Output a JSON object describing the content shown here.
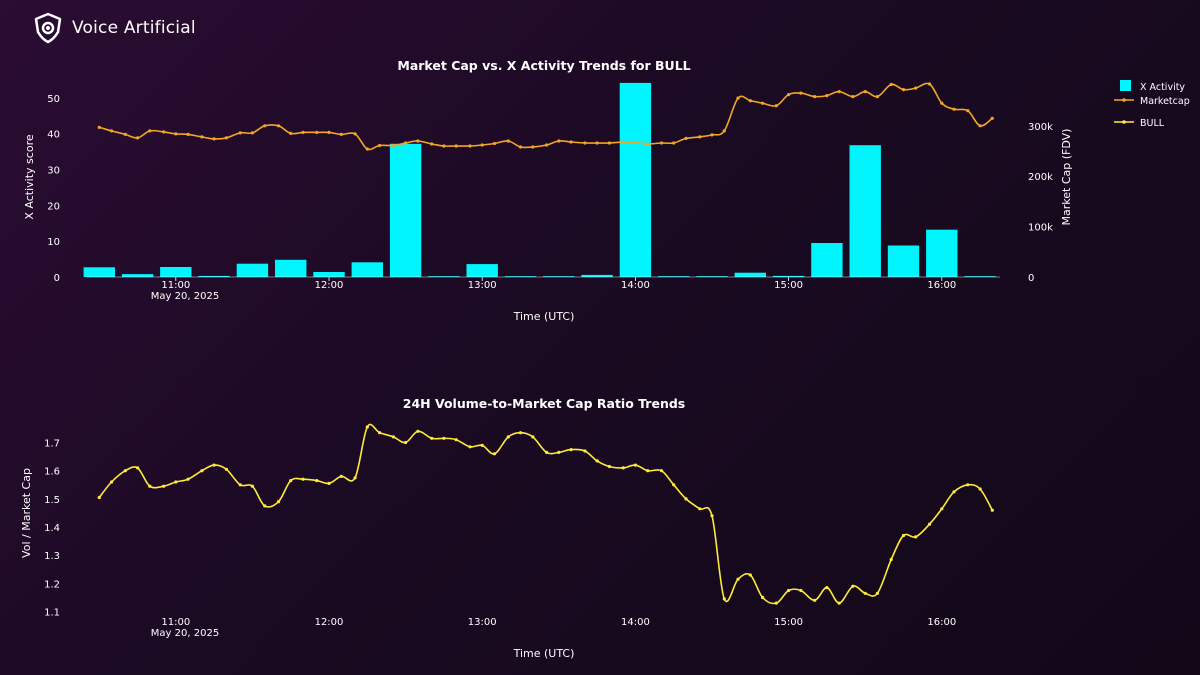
{
  "brand": {
    "name": "Voice Artificial",
    "logo_icon": "shield-eye-icon"
  },
  "colors": {
    "bar": "#00f5ff",
    "marketcap": "#f5a623",
    "bull": "#ffeb3b",
    "axis": "#ffffff"
  },
  "chart_data": [
    {
      "type": "bar+line",
      "title": "Market Cap vs. X Activity Trends for BULL",
      "xlabel": "Time (UTC)",
      "ylabel": "X Activity score",
      "y2label": "Market Cap (FDV)",
      "xlim_hours": [
        10.42,
        16.38
      ],
      "ylim": [
        0,
        55
      ],
      "y2lim": [
        0,
        391000
      ],
      "yticks": [
        0,
        10,
        20,
        30,
        40,
        50
      ],
      "y2ticks": [
        {
          "v": 0,
          "label": "0"
        },
        {
          "v": 100000,
          "label": "100k"
        },
        {
          "v": 200000,
          "label": "200k"
        },
        {
          "v": 300000,
          "label": "300k"
        }
      ],
      "xticks": [
        {
          "h": 11,
          "label": "11:00"
        },
        {
          "h": 12,
          "label": "12:00"
        },
        {
          "h": 13,
          "label": "13:00"
        },
        {
          "h": 14,
          "label": "14:00"
        },
        {
          "h": 15,
          "label": "15:00"
        },
        {
          "h": 16,
          "label": "16:00"
        }
      ],
      "date_label": "May 20, 2025",
      "legend": [
        "X Activity",
        "Marketcap",
        "BULL"
      ],
      "bars": {
        "name": "X Activity",
        "x": [
          10.5,
          10.75,
          11.0,
          11.25,
          11.5,
          11.75,
          12.0,
          12.25,
          12.5,
          12.75,
          13.0,
          13.25,
          13.5,
          13.75,
          14.0,
          14.25,
          14.5,
          14.75,
          15.0,
          15.25,
          15.5,
          15.75,
          16.0,
          16.25
        ],
        "values": [
          2.7,
          0.8,
          2.8,
          0.3,
          3.7,
          4.8,
          1.4,
          4.1,
          37.2,
          0,
          3.6,
          0.2,
          0.1,
          0.6,
          54.2,
          0.1,
          0,
          1.2,
          0.3,
          9.5,
          36.8,
          8.8,
          13.2,
          0
        ]
      },
      "series": [
        {
          "name": "Marketcap",
          "x": [
            10.5,
            10.58,
            10.67,
            10.75,
            10.83,
            10.92,
            11.0,
            11.08,
            11.17,
            11.25,
            11.33,
            11.42,
            11.5,
            11.58,
            11.67,
            11.75,
            11.83,
            11.92,
            12.0,
            12.08,
            12.17,
            12.25,
            12.33,
            12.42,
            12.5,
            12.58,
            12.67,
            12.75,
            12.83,
            12.92,
            13.0,
            13.08,
            13.17,
            13.25,
            13.33,
            13.42,
            13.5,
            13.58,
            13.67,
            13.75,
            13.83,
            13.92,
            14.0,
            14.08,
            14.17,
            14.25,
            14.33,
            14.42,
            14.5,
            14.58,
            14.67,
            14.75,
            14.83,
            14.92,
            15.0,
            15.08,
            15.17,
            15.25,
            15.33,
            15.42,
            15.5,
            15.58,
            15.67,
            15.75,
            15.83,
            15.92,
            16.0,
            16.08,
            16.17,
            16.25,
            16.33
          ],
          "values": [
            297000,
            290000,
            283000,
            276000,
            290000,
            288000,
            284000,
            283000,
            278000,
            274000,
            276000,
            286000,
            286000,
            300000,
            300000,
            285000,
            287000,
            287000,
            287000,
            283000,
            284000,
            254000,
            261000,
            261000,
            266000,
            270000,
            264000,
            260000,
            260000,
            260000,
            262000,
            265000,
            270000,
            258000,
            258000,
            262000,
            270000,
            268000,
            266000,
            266000,
            266000,
            268000,
            267000,
            264000,
            266000,
            266000,
            275000,
            278000,
            282000,
            290000,
            355000,
            350000,
            345000,
            340000,
            362000,
            365000,
            358000,
            360000,
            368000,
            358000,
            368000,
            358000,
            382000,
            372000,
            375000,
            383000,
            345000,
            333000,
            330000,
            300000,
            315000
          ]
        }
      ]
    },
    {
      "type": "line",
      "title": "24H Volume-to-Market Cap Ratio Trends",
      "xlabel": "Time (UTC)",
      "ylabel": "Vol / Market Cap",
      "xlim_hours": [
        10.42,
        16.38
      ],
      "ylim": [
        1.095,
        1.78
      ],
      "yticks": [
        1.1,
        1.2,
        1.3,
        1.4,
        1.5,
        1.6,
        1.7
      ],
      "xticks": [
        {
          "h": 11,
          "label": "11:00"
        },
        {
          "h": 12,
          "label": "12:00"
        },
        {
          "h": 13,
          "label": "13:00"
        },
        {
          "h": 14,
          "label": "14:00"
        },
        {
          "h": 15,
          "label": "15:00"
        },
        {
          "h": 16,
          "label": "16:00"
        }
      ],
      "date_label": "May 20, 2025",
      "series": [
        {
          "name": "BULL",
          "x": [
            10.5,
            10.58,
            10.67,
            10.75,
            10.83,
            10.92,
            11.0,
            11.08,
            11.17,
            11.25,
            11.33,
            11.42,
            11.5,
            11.58,
            11.67,
            11.75,
            11.83,
            11.92,
            12.0,
            12.08,
            12.17,
            12.25,
            12.33,
            12.42,
            12.5,
            12.58,
            12.67,
            12.75,
            12.83,
            12.92,
            13.0,
            13.08,
            13.17,
            13.25,
            13.33,
            13.42,
            13.5,
            13.58,
            13.67,
            13.75,
            13.83,
            13.92,
            14.0,
            14.08,
            14.17,
            14.25,
            14.33,
            14.42,
            14.5,
            14.58,
            14.67,
            14.75,
            14.83,
            14.92,
            15.0,
            15.08,
            15.17,
            15.25,
            15.33,
            15.42,
            15.5,
            15.58,
            15.67,
            15.75,
            15.83,
            15.92,
            16.0,
            16.08,
            16.17,
            16.25,
            16.33
          ],
          "values": [
            1.505,
            1.56,
            1.6,
            1.61,
            1.545,
            1.545,
            1.56,
            1.57,
            1.6,
            1.62,
            1.605,
            1.55,
            1.545,
            1.475,
            1.49,
            1.565,
            1.57,
            1.565,
            1.555,
            1.58,
            1.575,
            1.755,
            1.735,
            1.72,
            1.7,
            1.74,
            1.715,
            1.715,
            1.71,
            1.685,
            1.69,
            1.66,
            1.72,
            1.735,
            1.72,
            1.665,
            1.665,
            1.675,
            1.67,
            1.635,
            1.615,
            1.61,
            1.62,
            1.6,
            1.6,
            1.55,
            1.5,
            1.465,
            1.44,
            1.145,
            1.215,
            1.23,
            1.15,
            1.13,
            1.175,
            1.175,
            1.14,
            1.185,
            1.13,
            1.19,
            1.165,
            1.165,
            1.285,
            1.37,
            1.365,
            1.41,
            1.465,
            1.525,
            1.55,
            1.535,
            1.46
          ]
        }
      ]
    }
  ]
}
